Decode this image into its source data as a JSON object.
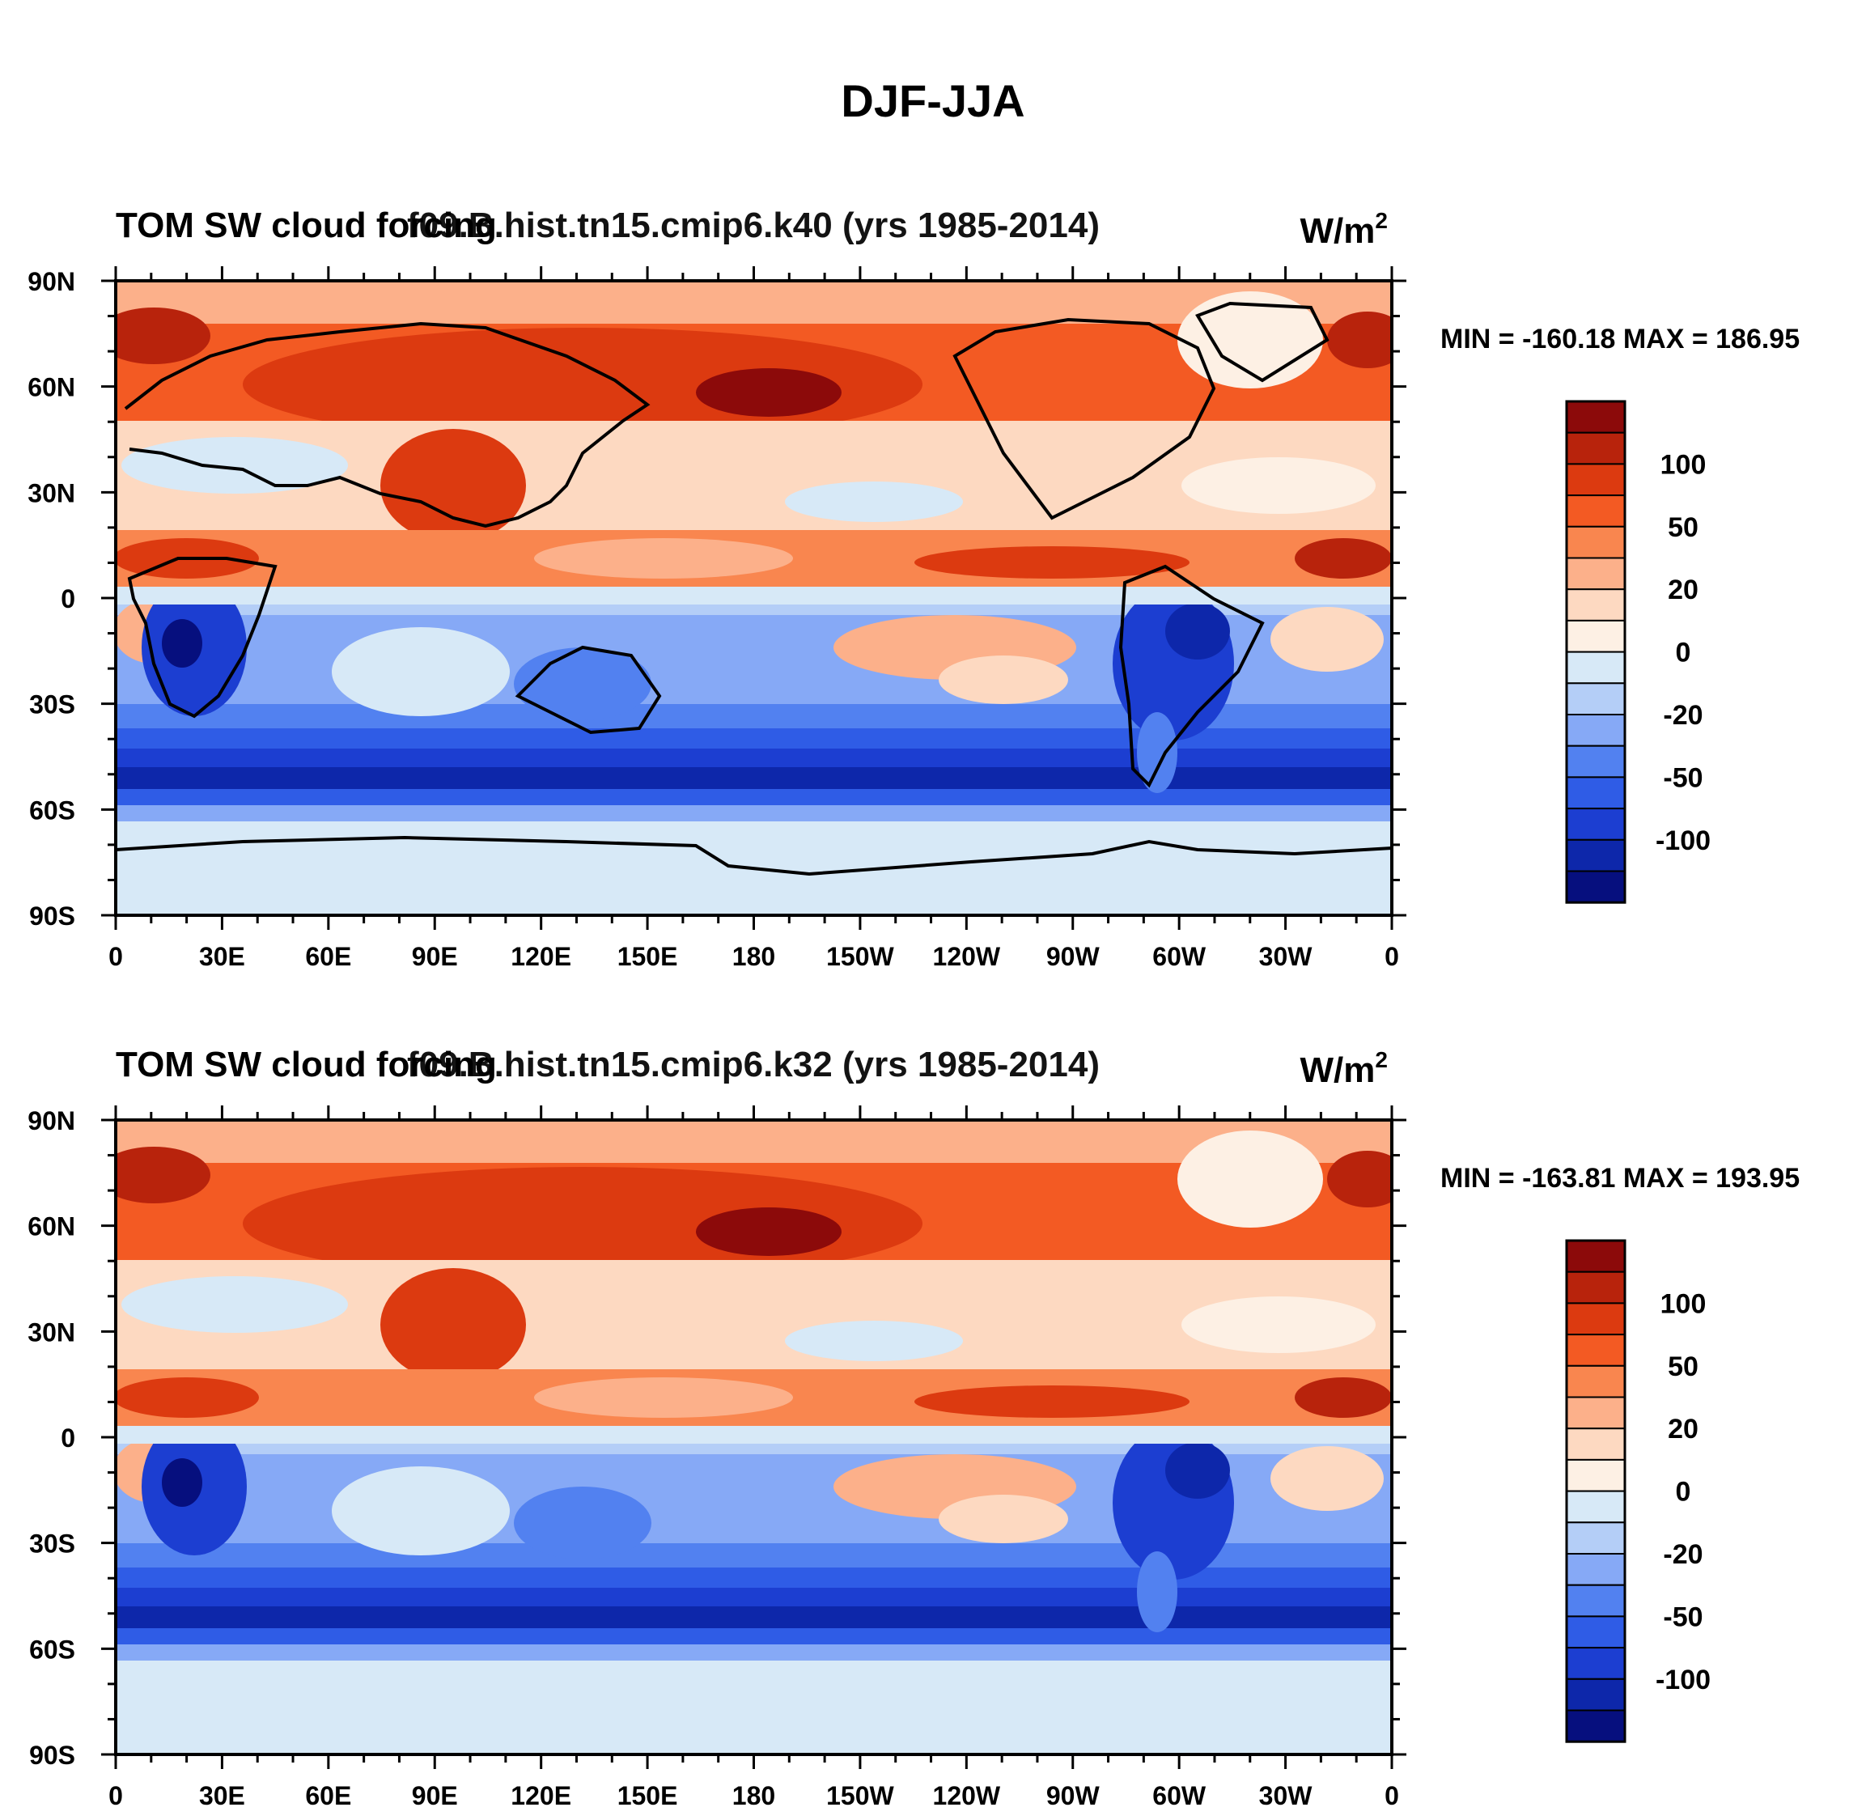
{
  "figure": {
    "title": "DJF-JJA",
    "x_tick_labels": [
      "0",
      "30E",
      "60E",
      "90E",
      "120E",
      "150E",
      "180",
      "150W",
      "120W",
      "90W",
      "60W",
      "30W",
      "0"
    ],
    "y_tick_labels": [
      "90N",
      "60N",
      "30N",
      "0",
      "30S",
      "60S",
      "90S"
    ]
  },
  "chart_data": [
    {
      "type": "heatmap",
      "title_left": "TOM SW cloud forcing",
      "title_center": "f09.B.hist.tn15.cmip6.k40 (yrs 1985-2014)",
      "units": "W/m",
      "units_superscript": "2",
      "stats": "MIN = -160.18 MAX = 186.95",
      "min": -160.18,
      "max": 186.95,
      "x_range": [
        0,
        360
      ],
      "y_range": [
        -90,
        90
      ],
      "colorbar": {
        "labels": [
          "100",
          "50",
          "20",
          "0",
          "-20",
          "-50",
          "-100"
        ],
        "colors": [
          "#8c0a0a",
          "#b8230c",
          "#dc3a10",
          "#f35a23",
          "#f9864f",
          "#fcb08a",
          "#fdd9c1",
          "#fdf0e4",
          "#d7e9f7",
          "#b4cef7",
          "#86a9f6",
          "#5281f0",
          "#2f5ce6",
          "#1c3ed1",
          "#0d27aa",
          "#060f7e"
        ]
      }
    },
    {
      "type": "heatmap",
      "title_left": "TOM SW cloud forcing",
      "title_center": "f09.B.hist.tn15.cmip6.k32 (yrs 1985-2014)",
      "units": "W/m",
      "units_superscript": "2",
      "stats": "MIN = -163.81 MAX = 193.95",
      "min": -163.81,
      "max": 193.95,
      "x_range": [
        0,
        360
      ],
      "y_range": [
        -90,
        90
      ],
      "colorbar": {
        "labels": [
          "100",
          "50",
          "20",
          "0",
          "-20",
          "-50",
          "-100"
        ],
        "colors": [
          "#8c0a0a",
          "#b8230c",
          "#dc3a10",
          "#f35a23",
          "#f9864f",
          "#fcb08a",
          "#fdd9c1",
          "#fdf0e4",
          "#d7e9f7",
          "#b4cef7",
          "#86a9f6",
          "#5281f0",
          "#2f5ce6",
          "#1c3ed1",
          "#0d27aa",
          "#060f7e"
        ]
      }
    }
  ]
}
